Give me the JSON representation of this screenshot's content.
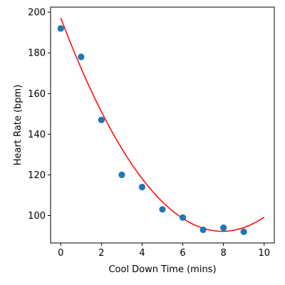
{
  "chart_data": {
    "type": "scatter",
    "title": "",
    "xlabel": "Cool Down Time (mins)",
    "ylabel": "Heart Rate (bpm)",
    "xlim": [
      -0.5,
      10.5
    ],
    "ylim": [
      86.5,
      202.5
    ],
    "xticks": [
      0,
      2,
      4,
      6,
      8,
      10
    ],
    "yticks": [
      100,
      120,
      140,
      160,
      180,
      200
    ],
    "grid": false,
    "legend": "none",
    "series": [
      {
        "kind": "points",
        "color": "#1f77b4",
        "x": [
          0,
          1,
          2,
          3,
          4,
          5,
          6,
          7,
          8,
          9
        ],
        "y": [
          192,
          178,
          147,
          120,
          114,
          103,
          99,
          93,
          94,
          92
        ]
      },
      {
        "kind": "fit-curve",
        "color": "#ff0000",
        "model": "quadratic",
        "x_range": [
          0,
          10
        ],
        "coefficients": [
          197.2,
          -26.4,
          1.66
        ]
      }
    ]
  }
}
